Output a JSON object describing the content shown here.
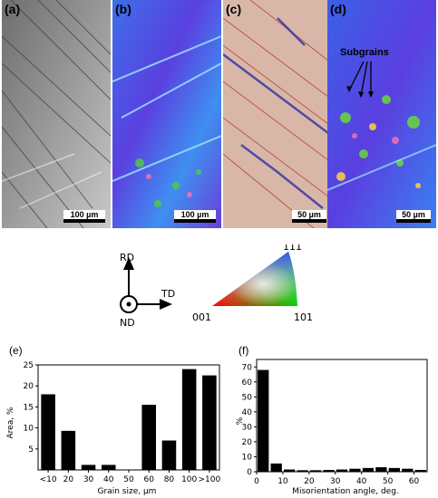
{
  "panels": [
    {
      "label": "(a)",
      "scale": "100 µm"
    },
    {
      "label": "(b)",
      "scale": "100 µm"
    },
    {
      "label": "(c)",
      "scale": "50 µm"
    },
    {
      "label": "(d)",
      "scale": "50 µm",
      "annotation": "Subgrains"
    }
  ],
  "orientation": {
    "rd": "RD",
    "td": "TD",
    "nd": "ND"
  },
  "ipf": {
    "top": "111",
    "left": "001",
    "right": "101"
  },
  "colors": {
    "bar": "#000000",
    "ipf_red": "#ff0000",
    "ipf_green": "#00d000",
    "ipf_blue": "#3050ff"
  },
  "chart_data": [
    {
      "id": "e",
      "label": "(e)",
      "type": "bar",
      "categories": [
        "<10",
        "20",
        "30",
        "40",
        "50",
        "60",
        "80",
        "100",
        ">100"
      ],
      "values": [
        18,
        9.3,
        1.2,
        1.2,
        0,
        15.5,
        7,
        24,
        22.5
      ],
      "xlabel": "Grain size, µm",
      "ylabel": "Area, %",
      "ylim": [
        0,
        25
      ],
      "yticks": [
        "5",
        "10",
        "15",
        "20",
        "25"
      ]
    },
    {
      "id": "f",
      "label": "(f)",
      "type": "bar",
      "x": [
        2.5,
        7.5,
        12.5,
        17.5,
        22.5,
        27.5,
        32.5,
        37.5,
        42.5,
        47.5,
        52.5,
        57.5,
        62.5
      ],
      "values": [
        68,
        5.5,
        1.5,
        1,
        1,
        1.2,
        1.5,
        2,
        2.5,
        3,
        2.5,
        2,
        1.2
      ],
      "xlabel": "Misorientation angle, deg.",
      "ylabel": "%",
      "xlim": [
        0,
        65
      ],
      "ylim": [
        0,
        75
      ],
      "xticks": [
        "0",
        "10",
        "20",
        "30",
        "40",
        "50",
        "60"
      ],
      "yticks": [
        "0",
        "10",
        "20",
        "30",
        "40",
        "50",
        "60",
        "70"
      ]
    }
  ]
}
